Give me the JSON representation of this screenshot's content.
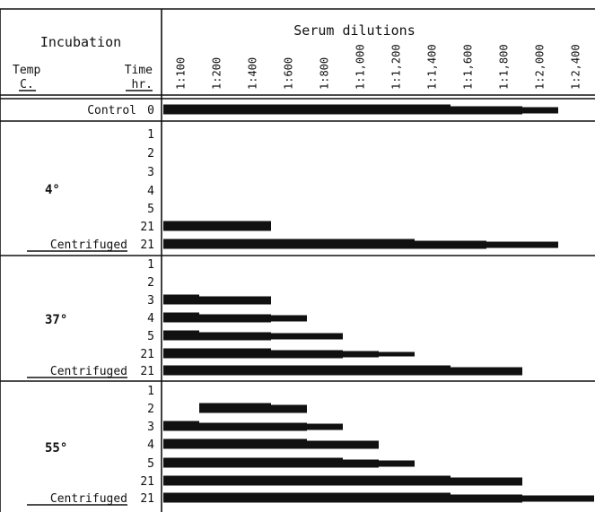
{
  "chart_data": {
    "type": "bar",
    "title": "Serum dilutions",
    "header": {
      "incubation": "Incubation",
      "temp_label": "Temp",
      "temp_unit": "C.",
      "time_label": "Time",
      "time_unit": "hr."
    },
    "dilutions": [
      "1:100",
      "1:200",
      "1:400",
      "1:600",
      "1:800",
      "1:1,000",
      "1:1,200",
      "1:1,400",
      "1:1,600",
      "1:1,800",
      "1:2,000",
      "1:2,400"
    ],
    "groups": [
      {
        "temp": "",
        "rows": [
          {
            "label": "Control",
            "time": "0",
            "segments": [
              [
                0,
                8
              ],
              [
                8,
                10
              ],
              [
                10,
                11
              ]
            ]
          }
        ]
      },
      {
        "temp": "4°",
        "rows": [
          {
            "label": "",
            "time": "1",
            "segments": []
          },
          {
            "label": "",
            "time": "2",
            "segments": []
          },
          {
            "label": "",
            "time": "3",
            "segments": []
          },
          {
            "label": "",
            "time": "4",
            "segments": []
          },
          {
            "label": "",
            "time": "5",
            "segments": []
          },
          {
            "label": "",
            "time": "21",
            "segments": [
              [
                0,
                3
              ]
            ]
          },
          {
            "label": "Centrifuged",
            "time": "21",
            "segments": [
              [
                0,
                7
              ],
              [
                7,
                9
              ],
              [
                9,
                11
              ]
            ]
          }
        ]
      },
      {
        "temp": "37°",
        "rows": [
          {
            "label": "",
            "time": "1",
            "segments": []
          },
          {
            "label": "",
            "time": "2",
            "segments": []
          },
          {
            "label": "",
            "time": "3",
            "segments": [
              [
                0,
                1
              ],
              [
                1,
                3
              ]
            ]
          },
          {
            "label": "",
            "time": "4",
            "segments": [
              [
                0,
                1
              ],
              [
                1,
                3
              ],
              [
                3,
                4
              ]
            ]
          },
          {
            "label": "",
            "time": "5",
            "segments": [
              [
                0,
                1
              ],
              [
                1,
                3
              ],
              [
                3,
                5
              ]
            ]
          },
          {
            "label": "",
            "time": "21",
            "segments": [
              [
                0,
                3
              ],
              [
                3,
                5
              ],
              [
                5,
                6
              ],
              [
                6,
                7
              ]
            ]
          },
          {
            "label": "Centrifuged",
            "time": "21",
            "segments": [
              [
                0,
                8
              ],
              [
                8,
                10
              ]
            ]
          }
        ]
      },
      {
        "temp": "55°",
        "rows": [
          {
            "label": "",
            "time": "1",
            "segments": []
          },
          {
            "label": "",
            "time": "2",
            "segments": [
              [
                1,
                3
              ],
              [
                3,
                4
              ]
            ]
          },
          {
            "label": "",
            "time": "3",
            "segments": [
              [
                0,
                1
              ],
              [
                1,
                4
              ],
              [
                4,
                5
              ]
            ]
          },
          {
            "label": "",
            "time": "4",
            "segments": [
              [
                0,
                4
              ],
              [
                4,
                6
              ]
            ]
          },
          {
            "label": "",
            "time": "5",
            "segments": [
              [
                0,
                5
              ],
              [
                5,
                6
              ],
              [
                6,
                7
              ]
            ]
          },
          {
            "label": "",
            "time": "21",
            "segments": [
              [
                0,
                8
              ],
              [
                8,
                10
              ]
            ]
          },
          {
            "label": "Centrifuged",
            "time": "21",
            "segments": [
              [
                0,
                8
              ],
              [
                8,
                10
              ],
              [
                10,
                12
              ]
            ]
          }
        ]
      }
    ],
    "ink_color": "#111111",
    "background": "#ffffff"
  }
}
